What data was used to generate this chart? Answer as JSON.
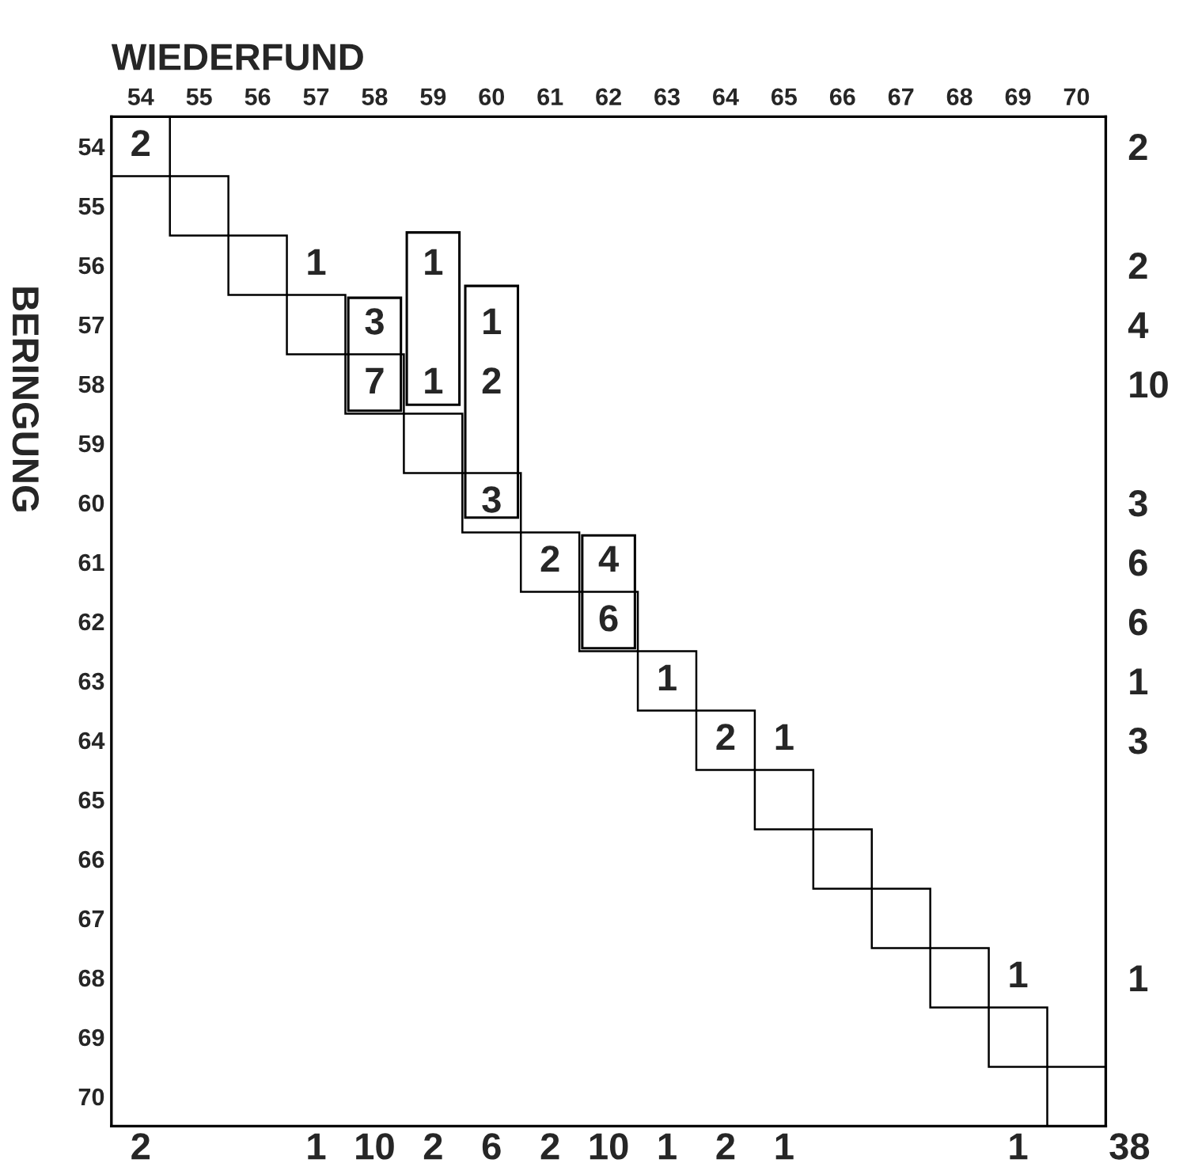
{
  "chart_data": {
    "type": "heatmap",
    "xlabel": "WIEDERFUND",
    "ylabel": "BERINGUNG",
    "categories": [
      "54",
      "55",
      "56",
      "57",
      "58",
      "59",
      "60",
      "61",
      "62",
      "63",
      "64",
      "65",
      "66",
      "67",
      "68",
      "69",
      "70"
    ],
    "y_categories": [
      "54",
      "55",
      "56",
      "57",
      "58",
      "59",
      "60",
      "61",
      "62",
      "63",
      "64",
      "65",
      "66",
      "67",
      "68",
      "69",
      "70"
    ],
    "y2_categories": [
      "2",
      null,
      "2",
      "4",
      "10",
      null,
      "3",
      "6",
      "6",
      "1",
      "3",
      null,
      null,
      null,
      "1",
      null,
      null
    ],
    "cells": [
      [
        2,
        null,
        null,
        null,
        null,
        null,
        null,
        null,
        null,
        null,
        null,
        null,
        null,
        null,
        null,
        null,
        null
      ],
      [
        null,
        null,
        null,
        null,
        null,
        null,
        null,
        null,
        null,
        null,
        null,
        null,
        null,
        null,
        null,
        null,
        null
      ],
      [
        null,
        null,
        null,
        1,
        null,
        1,
        null,
        null,
        null,
        null,
        null,
        null,
        null,
        null,
        null,
        null,
        null
      ],
      [
        null,
        null,
        null,
        null,
        3,
        null,
        1,
        null,
        null,
        null,
        null,
        null,
        null,
        null,
        null,
        null,
        null
      ],
      [
        null,
        null,
        null,
        null,
        7,
        1,
        2,
        null,
        null,
        null,
        null,
        null,
        null,
        null,
        null,
        null,
        null
      ],
      [
        null,
        null,
        null,
        null,
        null,
        null,
        null,
        null,
        null,
        null,
        null,
        null,
        null,
        null,
        null,
        null,
        null
      ],
      [
        null,
        null,
        null,
        null,
        null,
        null,
        3,
        null,
        null,
        null,
        null,
        null,
        null,
        null,
        null,
        null,
        null
      ],
      [
        null,
        null,
        null,
        null,
        null,
        null,
        null,
        2,
        4,
        null,
        null,
        null,
        null,
        null,
        null,
        null,
        null
      ],
      [
        null,
        null,
        null,
        null,
        null,
        null,
        null,
        null,
        6,
        null,
        null,
        null,
        null,
        null,
        null,
        null,
        null
      ],
      [
        null,
        null,
        null,
        null,
        null,
        null,
        null,
        null,
        null,
        1,
        null,
        null,
        null,
        null,
        null,
        null,
        null
      ],
      [
        null,
        null,
        null,
        null,
        null,
        null,
        null,
        null,
        null,
        null,
        2,
        1,
        null,
        null,
        null,
        null,
        null
      ],
      [
        null,
        null,
        null,
        null,
        null,
        null,
        null,
        null,
        null,
        null,
        null,
        null,
        null,
        null,
        null,
        null,
        null
      ],
      [
        null,
        null,
        null,
        null,
        null,
        null,
        null,
        null,
        null,
        null,
        null,
        null,
        null,
        null,
        null,
        null,
        null
      ],
      [
        null,
        null,
        null,
        null,
        null,
        null,
        null,
        null,
        null,
        null,
        null,
        null,
        null,
        null,
        null,
        null,
        null
      ],
      [
        null,
        null,
        null,
        null,
        null,
        null,
        null,
        null,
        null,
        null,
        null,
        null,
        null,
        null,
        null,
        1,
        null
      ],
      [
        null,
        null,
        null,
        null,
        null,
        null,
        null,
        null,
        null,
        null,
        null,
        null,
        null,
        null,
        null,
        null,
        null
      ],
      [
        null,
        null,
        null,
        null,
        null,
        null,
        null,
        null,
        null,
        null,
        null,
        null,
        null,
        null,
        null,
        null,
        null
      ]
    ],
    "data_labels": true,
    "totals": [
      "2",
      null,
      null,
      "1",
      "10",
      "2",
      "6",
      "2",
      "10",
      "1",
      "2",
      "1",
      null,
      null,
      null,
      "1",
      null
    ],
    "annotations": [
      "38"
    ]
  }
}
